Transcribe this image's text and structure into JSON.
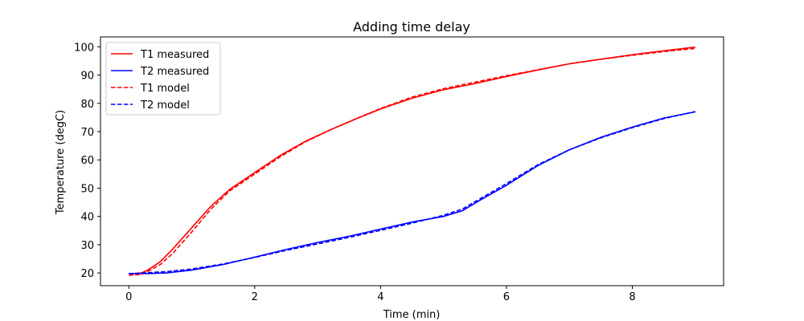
{
  "chart_data": {
    "type": "line",
    "title": "Adding time delay",
    "xlabel": "Time (min)",
    "ylabel": "Temperature (degC)",
    "xlim": [
      -0.45,
      9.45
    ],
    "ylim": [
      15.5,
      103.5
    ],
    "xticks": [
      0,
      2,
      4,
      6,
      8
    ],
    "yticks": [
      20,
      30,
      40,
      50,
      60,
      70,
      80,
      90,
      100
    ],
    "grid": false,
    "legend_position": "upper left",
    "series": [
      {
        "name": "T1 measured",
        "color": "#ff0000",
        "style": "solid",
        "x": [
          0,
          0.1,
          0.2,
          0.3,
          0.5,
          0.7,
          1.0,
          1.3,
          1.6,
          2.0,
          2.4,
          2.8,
          3.2,
          3.6,
          4.0,
          4.5,
          5.0,
          5.5,
          6.0,
          6.5,
          7.0,
          7.5,
          8.0,
          8.5,
          9.0
        ],
        "y": [
          19.8,
          19.8,
          20.0,
          21.0,
          24.0,
          28.5,
          36.0,
          43.5,
          49.5,
          55.5,
          61.5,
          66.5,
          70.6,
          74.4,
          78.0,
          81.8,
          84.8,
          87.0,
          89.5,
          91.8,
          94.0,
          95.6,
          97.2,
          98.6,
          99.9
        ]
      },
      {
        "name": "T2 measured",
        "color": "#0000ff",
        "style": "solid",
        "x": [
          0,
          0.3,
          0.6,
          1.0,
          1.5,
          2.0,
          2.5,
          3.0,
          3.5,
          4.0,
          4.5,
          5.0,
          5.3,
          5.6,
          6.0,
          6.5,
          7.0,
          7.5,
          8.0,
          8.5,
          9.0
        ],
        "y": [
          19.8,
          19.8,
          20.0,
          21.0,
          23.0,
          25.6,
          28.3,
          30.8,
          33.0,
          35.5,
          38.0,
          40.0,
          42.0,
          46.0,
          51.0,
          58.0,
          63.6,
          68.0,
          71.6,
          74.8,
          77.0
        ]
      },
      {
        "name": "T1 model",
        "color": "#ff0000",
        "style": "dashed",
        "x": [
          0,
          0.1,
          0.2,
          0.3,
          0.5,
          0.7,
          1.0,
          1.3,
          1.6,
          2.0,
          2.4,
          2.8,
          3.2,
          3.6,
          4.0,
          4.5,
          5.0,
          5.5,
          6.0,
          6.5,
          7.0,
          7.5,
          8.0,
          8.5,
          9.0
        ],
        "y": [
          19.2,
          19.3,
          19.5,
          20.5,
          23.0,
          27.0,
          34.5,
          42.5,
          49.0,
          55.0,
          61.0,
          66.3,
          70.6,
          74.5,
          78.2,
          82.2,
          85.2,
          87.5,
          89.8,
          91.9,
          94.0,
          95.6,
          97.0,
          98.3,
          99.4
        ]
      },
      {
        "name": "T2 model",
        "color": "#0000ff",
        "style": "dashed",
        "x": [
          0,
          0.3,
          0.6,
          1.0,
          1.5,
          2.0,
          2.5,
          3.0,
          3.5,
          4.0,
          4.5,
          5.0,
          5.3,
          5.6,
          6.0,
          6.5,
          7.0,
          7.5,
          8.0,
          8.5,
          9.0
        ],
        "y": [
          19.8,
          20.1,
          20.5,
          21.4,
          23.2,
          25.5,
          28.0,
          30.3,
          32.6,
          35.1,
          37.6,
          40.4,
          42.6,
          46.5,
          51.6,
          58.3,
          63.6,
          67.8,
          71.4,
          74.6,
          77.1
        ]
      }
    ]
  }
}
